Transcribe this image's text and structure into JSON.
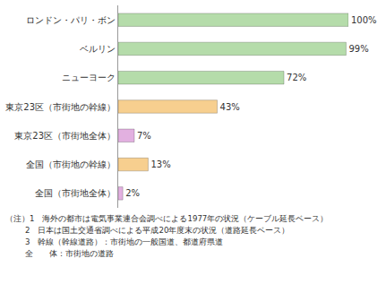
{
  "chart_data": {
    "type": "bar",
    "orientation": "horizontal",
    "categories": [
      "ロンドン・パリ・ボン",
      "ベルリン",
      "ニューヨーク",
      "東京23区（市街地の幹線）",
      "東京23区（市街地全体）",
      "全国（市街地の幹線）",
      "全国（市街地全体）"
    ],
    "values": [
      100,
      99,
      72,
      43,
      7,
      13,
      2
    ],
    "value_labels": [
      "100%",
      "99%",
      "72%",
      "43%",
      "7%",
      "13%",
      "2%"
    ],
    "colors": [
      "#b5dcaa",
      "#b5dcaa",
      "#b5dcaa",
      "#f7cf8f",
      "#e2b0e0",
      "#f7cf8f",
      "#e2b0e0"
    ],
    "xlim": [
      0,
      100
    ],
    "data_labels": true,
    "tick_labels": "y",
    "grid": false,
    "annotations": [
      "（注）1　海外の都市は電気事業連合会調べによる1977年の状況（ケーブル延長ベース）",
      "2　日本は国土交通省調べによる平成20年度末の状況（道路延長ベース）",
      "3　幹線（幹線道路）：市街地の一般国道、都道府県道",
      "全　　体：市街地の道路"
    ]
  }
}
